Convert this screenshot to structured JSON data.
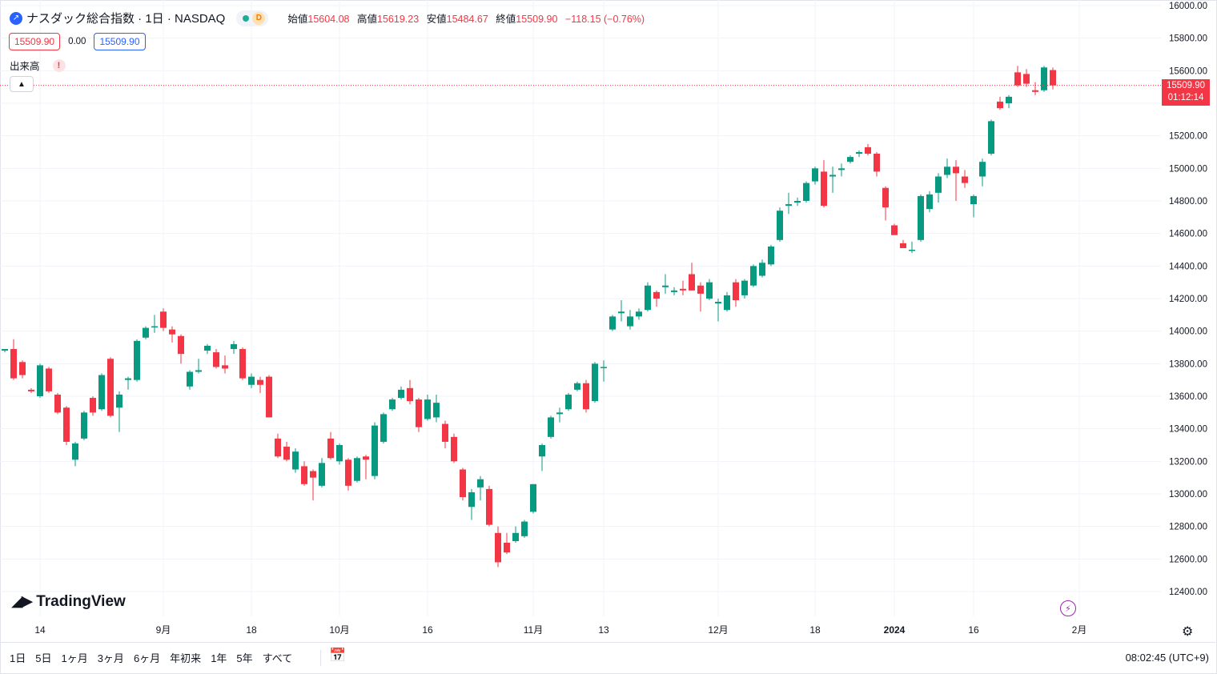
{
  "header": {
    "symbol_title": "ナスダック総合指数 · 1日 · NASDAQ",
    "data_badge": "D",
    "open_label": "始値",
    "open_value": "15604.08",
    "high_label": "高値",
    "high_value": "15619.23",
    "low_label": "安値",
    "low_value": "15484.67",
    "close_label": "終値",
    "close_value": "15509.90",
    "change": "−118.15 (−0.76%)"
  },
  "price_row": {
    "sell": "15509.90",
    "spread": "0.00",
    "buy": "15509.90"
  },
  "volume": {
    "label": "出来高",
    "warn": "!"
  },
  "last_price": {
    "value": "15509.90",
    "countdown": "01:12:14"
  },
  "brand": {
    "logo_text": "TradingView"
  },
  "range_buttons": [
    "1日",
    "5日",
    "1ヶ月",
    "3ヶ月",
    "6ヶ月",
    "年初来",
    "1年",
    "5年",
    "すべて"
  ],
  "clock": "08:02:45 (UTC+9)",
  "colors": {
    "up": "#089981",
    "down": "#f23645",
    "grid": "#f0f3fa",
    "accent": "#2962ff"
  },
  "chart_data": {
    "type": "candlestick",
    "ylim": [
      12250,
      16050
    ],
    "y_ticks": [
      12400,
      12600,
      12800,
      13000,
      13200,
      13400,
      13600,
      13800,
      14000,
      14200,
      14400,
      14600,
      14800,
      15000,
      15200,
      15400,
      15600,
      15800,
      16000
    ],
    "y_tick_labels": [
      "12400.00",
      "12600.00",
      "12800.00",
      "13000.00",
      "13200.00",
      "13400.00",
      "13600.00",
      "13800.00",
      "14000.00",
      "14200.00",
      "14400.00",
      "14600.00",
      "14800.00",
      "15000.00",
      "15200.00",
      "15400.00",
      "15600.00",
      "15800.00",
      "16000.00"
    ],
    "x_ticks": [
      {
        "index": 4,
        "label": "14"
      },
      {
        "index": 18,
        "label": "9月"
      },
      {
        "index": 28,
        "label": "18"
      },
      {
        "index": 38,
        "label": "10月"
      },
      {
        "index": 48,
        "label": "16"
      },
      {
        "index": 60,
        "label": "11月"
      },
      {
        "index": 68,
        "label": "13"
      },
      {
        "index": 81,
        "label": "12月"
      },
      {
        "index": 92,
        "label": "18"
      },
      {
        "index": 101,
        "label": "2024"
      },
      {
        "index": 110,
        "label": "16"
      },
      {
        "index": 122,
        "label": "2月"
      }
    ],
    "last_price_line": 15509.9,
    "candles": [
      {
        "o": 13880,
        "h": 13890,
        "l": 13870,
        "c": 13890
      },
      {
        "o": 13890,
        "h": 13950,
        "l": 13700,
        "c": 13710
      },
      {
        "o": 13810,
        "h": 13820,
        "l": 13710,
        "c": 13730
      },
      {
        "o": 13640,
        "h": 13650,
        "l": 13620,
        "c": 13630
      },
      {
        "o": 13600,
        "h": 13800,
        "l": 13590,
        "c": 13790
      },
      {
        "o": 13770,
        "h": 13780,
        "l": 13620,
        "c": 13630
      },
      {
        "o": 13610,
        "h": 13620,
        "l": 13490,
        "c": 13500
      },
      {
        "o": 13530,
        "h": 13540,
        "l": 13300,
        "c": 13320
      },
      {
        "o": 13210,
        "h": 13320,
        "l": 13170,
        "c": 13310
      },
      {
        "o": 13340,
        "h": 13510,
        "l": 13330,
        "c": 13500
      },
      {
        "o": 13590,
        "h": 13600,
        "l": 13480,
        "c": 13500
      },
      {
        "o": 13520,
        "h": 13740,
        "l": 13510,
        "c": 13730
      },
      {
        "o": 13830,
        "h": 13840,
        "l": 13470,
        "c": 13480
      },
      {
        "o": 13530,
        "h": 13630,
        "l": 13380,
        "c": 13610
      },
      {
        "o": 13700,
        "h": 13720,
        "l": 13640,
        "c": 13710
      },
      {
        "o": 13700,
        "h": 13950,
        "l": 13690,
        "c": 13940
      },
      {
        "o": 13960,
        "h": 14030,
        "l": 13950,
        "c": 14020
      },
      {
        "o": 14030,
        "h": 14100,
        "l": 13990,
        "c": 14030
      },
      {
        "o": 14120,
        "h": 14140,
        "l": 14000,
        "c": 14020
      },
      {
        "o": 14010,
        "h": 14030,
        "l": 13930,
        "c": 13980
      },
      {
        "o": 13970,
        "h": 13980,
        "l": 13800,
        "c": 13860
      },
      {
        "o": 13660,
        "h": 13760,
        "l": 13640,
        "c": 13750
      },
      {
        "o": 13750,
        "h": 13830,
        "l": 13740,
        "c": 13760
      },
      {
        "o": 13880,
        "h": 13920,
        "l": 13860,
        "c": 13910
      },
      {
        "o": 13870,
        "h": 13890,
        "l": 13770,
        "c": 13780
      },
      {
        "o": 13790,
        "h": 13850,
        "l": 13740,
        "c": 13770
      },
      {
        "o": 13890,
        "h": 13940,
        "l": 13860,
        "c": 13920
      },
      {
        "o": 13890,
        "h": 13900,
        "l": 13700,
        "c": 13710
      },
      {
        "o": 13670,
        "h": 13740,
        "l": 13650,
        "c": 13720
      },
      {
        "o": 13700,
        "h": 13720,
        "l": 13620,
        "c": 13670
      },
      {
        "o": 13720,
        "h": 13730,
        "l": 13470,
        "c": 13470
      },
      {
        "o": 13340,
        "h": 13370,
        "l": 13220,
        "c": 13230
      },
      {
        "o": 13290,
        "h": 13320,
        "l": 13200,
        "c": 13210
      },
      {
        "o": 13150,
        "h": 13280,
        "l": 13130,
        "c": 13260
      },
      {
        "o": 13170,
        "h": 13200,
        "l": 13050,
        "c": 13060
      },
      {
        "o": 13140,
        "h": 13150,
        "l": 12960,
        "c": 13100
      },
      {
        "o": 13050,
        "h": 13220,
        "l": 13040,
        "c": 13190
      },
      {
        "o": 13340,
        "h": 13380,
        "l": 13210,
        "c": 13220
      },
      {
        "o": 13200,
        "h": 13310,
        "l": 13180,
        "c": 13300
      },
      {
        "o": 13210,
        "h": 13220,
        "l": 13020,
        "c": 13050
      },
      {
        "o": 13080,
        "h": 13230,
        "l": 13070,
        "c": 13220
      },
      {
        "o": 13230,
        "h": 13240,
        "l": 13090,
        "c": 13210
      },
      {
        "o": 13110,
        "h": 13440,
        "l": 13090,
        "c": 13420
      },
      {
        "o": 13320,
        "h": 13500,
        "l": 13310,
        "c": 13490
      },
      {
        "o": 13520,
        "h": 13590,
        "l": 13510,
        "c": 13580
      },
      {
        "o": 13590,
        "h": 13660,
        "l": 13580,
        "c": 13640
      },
      {
        "o": 13650,
        "h": 13700,
        "l": 13550,
        "c": 13570
      },
      {
        "o": 13580,
        "h": 13590,
        "l": 13380,
        "c": 13410
      },
      {
        "o": 13460,
        "h": 13610,
        "l": 13450,
        "c": 13580
      },
      {
        "o": 13470,
        "h": 13610,
        "l": 13440,
        "c": 13560
      },
      {
        "o": 13430,
        "h": 13450,
        "l": 13280,
        "c": 13320
      },
      {
        "o": 13350,
        "h": 13370,
        "l": 13190,
        "c": 13200
      },
      {
        "o": 13150,
        "h": 13160,
        "l": 12960,
        "c": 12980
      },
      {
        "o": 12920,
        "h": 13030,
        "l": 12840,
        "c": 13010
      },
      {
        "o": 13040,
        "h": 13110,
        "l": 12960,
        "c": 13090
      },
      {
        "o": 13030,
        "h": 13050,
        "l": 12800,
        "c": 12810
      },
      {
        "o": 12760,
        "h": 12800,
        "l": 12550,
        "c": 12580
      },
      {
        "o": 12700,
        "h": 12760,
        "l": 12630,
        "c": 12640
      },
      {
        "o": 12710,
        "h": 12800,
        "l": 12700,
        "c": 12760
      },
      {
        "o": 12740,
        "h": 12840,
        "l": 12730,
        "c": 12830
      },
      {
        "o": 12890,
        "h": 13060,
        "l": 12880,
        "c": 13060
      },
      {
        "o": 13230,
        "h": 13310,
        "l": 13140,
        "c": 13300
      },
      {
        "o": 13350,
        "h": 13480,
        "l": 13340,
        "c": 13470
      },
      {
        "o": 13490,
        "h": 13530,
        "l": 13440,
        "c": 13500
      },
      {
        "o": 13520,
        "h": 13620,
        "l": 13510,
        "c": 13610
      },
      {
        "o": 13640,
        "h": 13690,
        "l": 13630,
        "c": 13680
      },
      {
        "o": 13680,
        "h": 13700,
        "l": 13500,
        "c": 13520
      },
      {
        "o": 13570,
        "h": 13810,
        "l": 13560,
        "c": 13800
      },
      {
        "o": 13780,
        "h": 13820,
        "l": 13690,
        "c": 13780
      },
      {
        "o": 14010,
        "h": 14100,
        "l": 14000,
        "c": 14090
      },
      {
        "o": 14110,
        "h": 14190,
        "l": 14060,
        "c": 14120
      },
      {
        "o": 14030,
        "h": 14130,
        "l": 14010,
        "c": 14090
      },
      {
        "o": 14090,
        "h": 14140,
        "l": 14070,
        "c": 14120
      },
      {
        "o": 14130,
        "h": 14300,
        "l": 14120,
        "c": 14280
      },
      {
        "o": 14240,
        "h": 14250,
        "l": 14150,
        "c": 14200
      },
      {
        "o": 14270,
        "h": 14350,
        "l": 14230,
        "c": 14280
      },
      {
        "o": 14240,
        "h": 14270,
        "l": 14220,
        "c": 14250
      },
      {
        "o": 14260,
        "h": 14310,
        "l": 14220,
        "c": 14250
      },
      {
        "o": 14350,
        "h": 14420,
        "l": 14250,
        "c": 14250
      },
      {
        "o": 14280,
        "h": 14300,
        "l": 14120,
        "c": 14230
      },
      {
        "o": 14200,
        "h": 14320,
        "l": 14190,
        "c": 14300
      },
      {
        "o": 14170,
        "h": 14200,
        "l": 14060,
        "c": 14180
      },
      {
        "o": 14130,
        "h": 14240,
        "l": 14120,
        "c": 14220
      },
      {
        "o": 14300,
        "h": 14320,
        "l": 14150,
        "c": 14190
      },
      {
        "o": 14220,
        "h": 14320,
        "l": 14200,
        "c": 14310
      },
      {
        "o": 14280,
        "h": 14410,
        "l": 14270,
        "c": 14400
      },
      {
        "o": 14340,
        "h": 14440,
        "l": 14330,
        "c": 14420
      },
      {
        "o": 14410,
        "h": 14530,
        "l": 14400,
        "c": 14520
      },
      {
        "o": 14560,
        "h": 14760,
        "l": 14550,
        "c": 14740
      },
      {
        "o": 14770,
        "h": 14850,
        "l": 14720,
        "c": 14780
      },
      {
        "o": 14790,
        "h": 14820,
        "l": 14770,
        "c": 14800
      },
      {
        "o": 14800,
        "h": 14920,
        "l": 14790,
        "c": 14910
      },
      {
        "o": 14920,
        "h": 15010,
        "l": 14900,
        "c": 15000
      },
      {
        "o": 14980,
        "h": 15050,
        "l": 14760,
        "c": 14770
      },
      {
        "o": 14950,
        "h": 15010,
        "l": 14850,
        "c": 14960
      },
      {
        "o": 14990,
        "h": 15030,
        "l": 14950,
        "c": 15000
      },
      {
        "o": 15040,
        "h": 15080,
        "l": 15030,
        "c": 15070
      },
      {
        "o": 15090,
        "h": 15110,
        "l": 15070,
        "c": 15100
      },
      {
        "o": 15130,
        "h": 15150,
        "l": 15080,
        "c": 15090
      },
      {
        "o": 15090,
        "h": 15100,
        "l": 14950,
        "c": 14980
      },
      {
        "o": 14880,
        "h": 14890,
        "l": 14680,
        "c": 14760
      },
      {
        "o": 14650,
        "h": 14660,
        "l": 14590,
        "c": 14590
      },
      {
        "o": 14540,
        "h": 14560,
        "l": 14510,
        "c": 14510
      },
      {
        "o": 14500,
        "h": 14550,
        "l": 14480,
        "c": 14500
      },
      {
        "o": 14560,
        "h": 14840,
        "l": 14550,
        "c": 14830
      },
      {
        "o": 14750,
        "h": 14860,
        "l": 14730,
        "c": 14840
      },
      {
        "o": 14850,
        "h": 14970,
        "l": 14790,
        "c": 14950
      },
      {
        "o": 14960,
        "h": 15060,
        "l": 14940,
        "c": 15010
      },
      {
        "o": 15010,
        "h": 15050,
        "l": 14800,
        "c": 14970
      },
      {
        "o": 14950,
        "h": 14990,
        "l": 14880,
        "c": 14910
      },
      {
        "o": 14780,
        "h": 14840,
        "l": 14700,
        "c": 14830
      },
      {
        "o": 14950,
        "h": 15060,
        "l": 14890,
        "c": 15040
      },
      {
        "o": 15090,
        "h": 15300,
        "l": 15080,
        "c": 15290
      },
      {
        "o": 15410,
        "h": 15440,
        "l": 15360,
        "c": 15370
      },
      {
        "o": 15400,
        "h": 15450,
        "l": 15370,
        "c": 15440
      },
      {
        "o": 15590,
        "h": 15630,
        "l": 15500,
        "c": 15510
      },
      {
        "o": 15580,
        "h": 15610,
        "l": 15500,
        "c": 15520
      },
      {
        "o": 15480,
        "h": 15530,
        "l": 15450,
        "c": 15470
      },
      {
        "o": 15480,
        "h": 15630,
        "l": 15470,
        "c": 15620
      },
      {
        "o": 15604.08,
        "h": 15619.23,
        "l": 15484.67,
        "c": 15509.9
      }
    ]
  }
}
